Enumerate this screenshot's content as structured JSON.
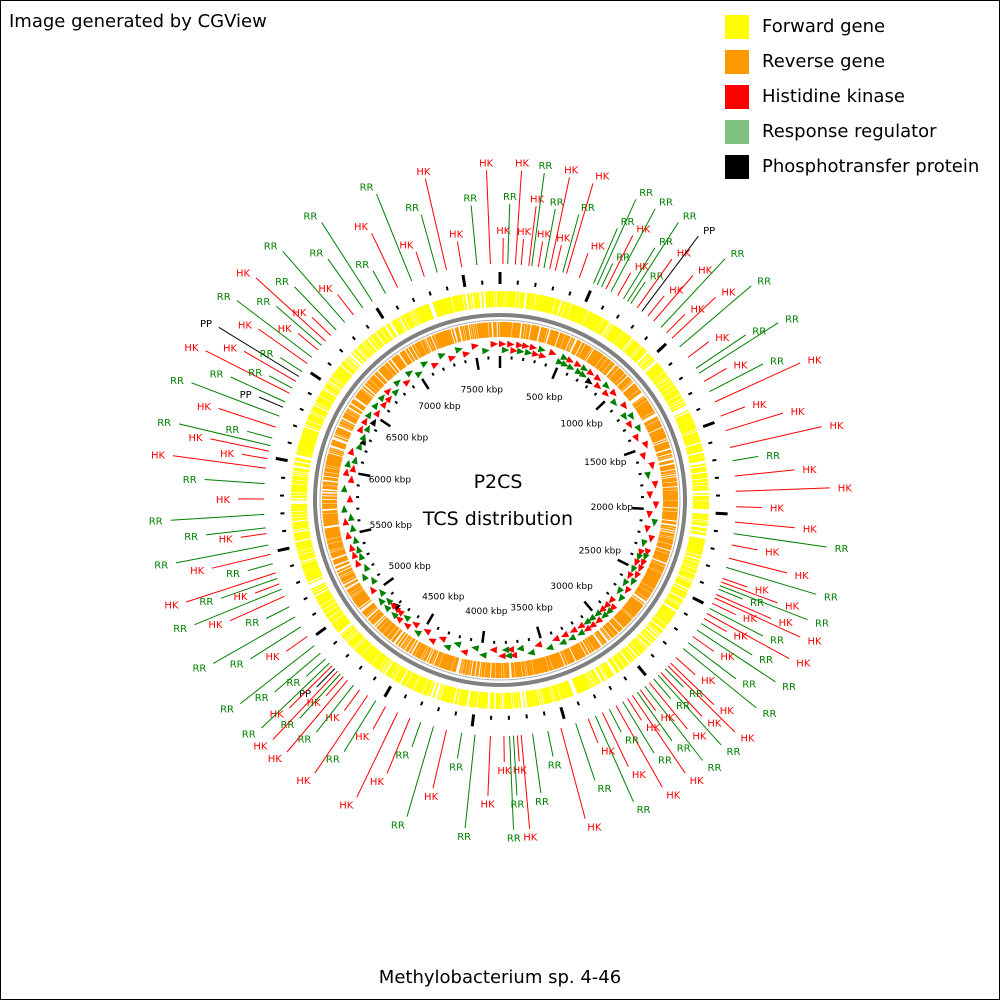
{
  "header": {
    "text": "Image generated by CGView"
  },
  "footer": {
    "organism": "Methylobacterium sp. 4-46"
  },
  "center": {
    "title": "P2CS",
    "subtitle": "TCS distribution"
  },
  "legend": [
    {
      "label": "Forward gene",
      "color": "#ffff00"
    },
    {
      "label": "Reverse gene",
      "color": "#ff9900"
    },
    {
      "label": "Histidine kinase",
      "color": "#ff0000"
    },
    {
      "label": "Response regulator",
      "color": "#80c080"
    },
    {
      "label": "Phosphotransfer protein",
      "color": "#000000"
    }
  ],
  "colors": {
    "hk": "#ff0000",
    "rr": "#008000",
    "pp": "#000000",
    "forward": "#ffff00",
    "reverse": "#ff9900",
    "backbone": "#808080"
  },
  "map": {
    "genome_kbp": 7700,
    "scale_labels": [
      "500 kbp",
      "1000 kbp",
      "1500 kbp",
      "2000 kbp",
      "2500 kbp",
      "3000 kbp",
      "3500 kbp",
      "4000 kbp",
      "4500 kbp",
      "5000 kbp",
      "5500 kbp",
      "6000 kbp",
      "6500 kbp",
      "7000 kbp",
      "7500 kbp"
    ],
    "features": [
      {
        "kbp": 15,
        "label": "HK"
      },
      {
        "kbp": 40,
        "label": "RR"
      },
      {
        "kbp": 80,
        "label": "HK"
      },
      {
        "kbp": 110,
        "label": "HK"
      },
      {
        "kbp": 150,
        "label": "HK"
      },
      {
        "kbp": 165,
        "label": "RR"
      },
      {
        "kbp": 200,
        "label": "HK"
      },
      {
        "kbp": 230,
        "label": "RR"
      },
      {
        "kbp": 260,
        "label": "HK"
      },
      {
        "kbp": 290,
        "label": "HK"
      },
      {
        "kbp": 330,
        "label": "RR"
      },
      {
        "kbp": 350,
        "label": "HK"
      },
      {
        "kbp": 420,
        "label": "HK"
      },
      {
        "kbp": 500,
        "label": "RR"
      },
      {
        "kbp": 520,
        "label": "RR"
      },
      {
        "kbp": 545,
        "label": "RR"
      },
      {
        "kbp": 570,
        "label": "HK"
      },
      {
        "kbp": 600,
        "label": "RR"
      },
      {
        "kbp": 640,
        "label": "HK"
      },
      {
        "kbp": 675,
        "label": "RR"
      },
      {
        "kbp": 700,
        "label": "RR"
      },
      {
        "kbp": 720,
        "label": "RR"
      },
      {
        "kbp": 760,
        "label": "HK"
      },
      {
        "kbp": 790,
        "label": "PP"
      },
      {
        "kbp": 830,
        "label": "HK"
      },
      {
        "kbp": 870,
        "label": "HK"
      },
      {
        "kbp": 920,
        "label": "RR"
      },
      {
        "kbp": 960,
        "label": "HK"
      },
      {
        "kbp": 1000,
        "label": "HK"
      },
      {
        "kbp": 1060,
        "label": "RR"
      },
      {
        "kbp": 1130,
        "label": "HK"
      },
      {
        "kbp": 1200,
        "label": "RR"
      },
      {
        "kbp": 1230,
        "label": "RR"
      },
      {
        "kbp": 1280,
        "label": "HK"
      },
      {
        "kbp": 1340,
        "label": "RR"
      },
      {
        "kbp": 1400,
        "label": "HK"
      },
      {
        "kbp": 1480,
        "label": "HK"
      },
      {
        "kbp": 1560,
        "label": "HK"
      },
      {
        "kbp": 1650,
        "label": "HK"
      },
      {
        "kbp": 1720,
        "label": "RR"
      },
      {
        "kbp": 1800,
        "label": "HK"
      },
      {
        "kbp": 1880,
        "label": "HK"
      },
      {
        "kbp": 1960,
        "label": "HK"
      },
      {
        "kbp": 2040,
        "label": "HK"
      },
      {
        "kbp": 2100,
        "label": "RR"
      },
      {
        "kbp": 2160,
        "label": "HK"
      },
      {
        "kbp": 2230,
        "label": "HK"
      },
      {
        "kbp": 2280,
        "label": "RR"
      },
      {
        "kbp": 2340,
        "label": "HK"
      },
      {
        "kbp": 2360,
        "label": "HK"
      },
      {
        "kbp": 2380,
        "label": "RR"
      },
      {
        "kbp": 2400,
        "label": "RR"
      },
      {
        "kbp": 2430,
        "label": "HK"
      },
      {
        "kbp": 2450,
        "label": "HK"
      },
      {
        "kbp": 2480,
        "label": "HK"
      },
      {
        "kbp": 2510,
        "label": "RR"
      },
      {
        "kbp": 2540,
        "label": "HK"
      },
      {
        "kbp": 2570,
        "label": "HK"
      },
      {
        "kbp": 2600,
        "label": "RR"
      },
      {
        "kbp": 2640,
        "label": "RR"
      },
      {
        "kbp": 2680,
        "label": "HK"
      },
      {
        "kbp": 2720,
        "label": "RR"
      },
      {
        "kbp": 2760,
        "label": "RR"
      },
      {
        "kbp": 2820,
        "label": "HK"
      },
      {
        "kbp": 2860,
        "label": "HK"
      },
      {
        "kbp": 2880,
        "label": "HK"
      },
      {
        "kbp": 2900,
        "label": "RR"
      },
      {
        "kbp": 2930,
        "label": "HK"
      },
      {
        "kbp": 2950,
        "label": "RR"
      },
      {
        "kbp": 2980,
        "label": "RR"
      },
      {
        "kbp": 3010,
        "label": "HK"
      },
      {
        "kbp": 3040,
        "label": "RR"
      },
      {
        "kbp": 3070,
        "label": "HK"
      },
      {
        "kbp": 3090,
        "label": "RR"
      },
      {
        "kbp": 3120,
        "label": "HK"
      },
      {
        "kbp": 3150,
        "label": "HK"
      },
      {
        "kbp": 3180,
        "label": "RR"
      },
      {
        "kbp": 3220,
        "label": "HK"
      },
      {
        "kbp": 3260,
        "label": "RR"
      },
      {
        "kbp": 3300,
        "label": "HK"
      },
      {
        "kbp": 3340,
        "label": "RR"
      },
      {
        "kbp": 3380,
        "label": "HK"
      },
      {
        "kbp": 3450,
        "label": "RR"
      },
      {
        "kbp": 3530,
        "label": "HK"
      },
      {
        "kbp": 3600,
        "label": "RR"
      },
      {
        "kbp": 3680,
        "label": "RR"
      },
      {
        "kbp": 3740,
        "label": "HK"
      },
      {
        "kbp": 3760,
        "label": "HK"
      },
      {
        "kbp": 3780,
        "label": "RR"
      },
      {
        "kbp": 3800,
        "label": "RR"
      },
      {
        "kbp": 3830,
        "label": "HK"
      },
      {
        "kbp": 3900,
        "label": "HK"
      },
      {
        "kbp": 3980,
        "label": "RR"
      },
      {
        "kbp": 4050,
        "label": "RR"
      },
      {
        "kbp": 4130,
        "label": "HK"
      },
      {
        "kbp": 4200,
        "label": "RR"
      },
      {
        "kbp": 4270,
        "label": "RR"
      },
      {
        "kbp": 4330,
        "label": "HK"
      },
      {
        "kbp": 4400,
        "label": "HK"
      },
      {
        "kbp": 4470,
        "label": "HK"
      },
      {
        "kbp": 4530,
        "label": "RR"
      },
      {
        "kbp": 4580,
        "label": "HK"
      },
      {
        "kbp": 4630,
        "label": "HK"
      },
      {
        "kbp": 4670,
        "label": "RR"
      },
      {
        "kbp": 4710,
        "label": "HK"
      },
      {
        "kbp": 4740,
        "label": "HK"
      },
      {
        "kbp": 4760,
        "label": "RR"
      },
      {
        "kbp": 4780,
        "label": "HK"
      },
      {
        "kbp": 4800,
        "label": "PP"
      },
      {
        "kbp": 4820,
        "label": "HK"
      },
      {
        "kbp": 4840,
        "label": "RR"
      },
      {
        "kbp": 4870,
        "label": "RR"
      },
      {
        "kbp": 4910,
        "label": "RR"
      },
      {
        "kbp": 4960,
        "label": "RR"
      },
      {
        "kbp": 5020,
        "label": "HK"
      },
      {
        "kbp": 5080,
        "label": "RR"
      },
      {
        "kbp": 5140,
        "label": "RR"
      },
      {
        "kbp": 5200,
        "label": "RR"
      },
      {
        "kbp": 5260,
        "label": "HK"
      },
      {
        "kbp": 5300,
        "label": "RR"
      },
      {
        "kbp": 5330,
        "label": "HK"
      },
      {
        "kbp": 5360,
        "label": "RR"
      },
      {
        "kbp": 5390,
        "label": "HK"
      },
      {
        "kbp": 5440,
        "label": "RR"
      },
      {
        "kbp": 5490,
        "label": "HK"
      },
      {
        "kbp": 5540,
        "label": "RR"
      },
      {
        "kbp": 5600,
        "label": "HK"
      },
      {
        "kbp": 5630,
        "label": "RR"
      },
      {
        "kbp": 5700,
        "label": "RR"
      },
      {
        "kbp": 5780,
        "label": "HK"
      },
      {
        "kbp": 5860,
        "label": "RR"
      },
      {
        "kbp": 5940,
        "label": "HK"
      },
      {
        "kbp": 5990,
        "label": "HK"
      },
      {
        "kbp": 6030,
        "label": "HK"
      },
      {
        "kbp": 6060,
        "label": "RR"
      },
      {
        "kbp": 6100,
        "label": "RR"
      },
      {
        "kbp": 6160,
        "label": "HK"
      },
      {
        "kbp": 6220,
        "label": "RR"
      },
      {
        "kbp": 6270,
        "label": "PP"
      },
      {
        "kbp": 6300,
        "label": "RR"
      },
      {
        "kbp": 6350,
        "label": "HK"
      },
      {
        "kbp": 6380,
        "label": "RR"
      },
      {
        "kbp": 6420,
        "label": "HK"
      },
      {
        "kbp": 6450,
        "label": "PP"
      },
      {
        "kbp": 6480,
        "label": "RR"
      },
      {
        "kbp": 6530,
        "label": "HK"
      },
      {
        "kbp": 6570,
        "label": "RR"
      },
      {
        "kbp": 6620,
        "label": "HK"
      },
      {
        "kbp": 6650,
        "label": "RR"
      },
      {
        "kbp": 6680,
        "label": "HK"
      },
      {
        "kbp": 6720,
        "label": "HK"
      },
      {
        "kbp": 6760,
        "label": "RR"
      },
      {
        "kbp": 6820,
        "label": "RR"
      },
      {
        "kbp": 6880,
        "label": "HK"
      },
      {
        "kbp": 6940,
        "label": "RR"
      },
      {
        "kbp": 7000,
        "label": "RR"
      },
      {
        "kbp": 7080,
        "label": "RR"
      },
      {
        "kbp": 7150,
        "label": "HK"
      },
      {
        "kbp": 7230,
        "label": "RR"
      },
      {
        "kbp": 7300,
        "label": "HK"
      },
      {
        "kbp": 7370,
        "label": "RR"
      },
      {
        "kbp": 7420,
        "label": "HK"
      },
      {
        "kbp": 7500,
        "label": "HK"
      },
      {
        "kbp": 7580,
        "label": "RR"
      },
      {
        "kbp": 7650,
        "label": "HK"
      }
    ]
  }
}
